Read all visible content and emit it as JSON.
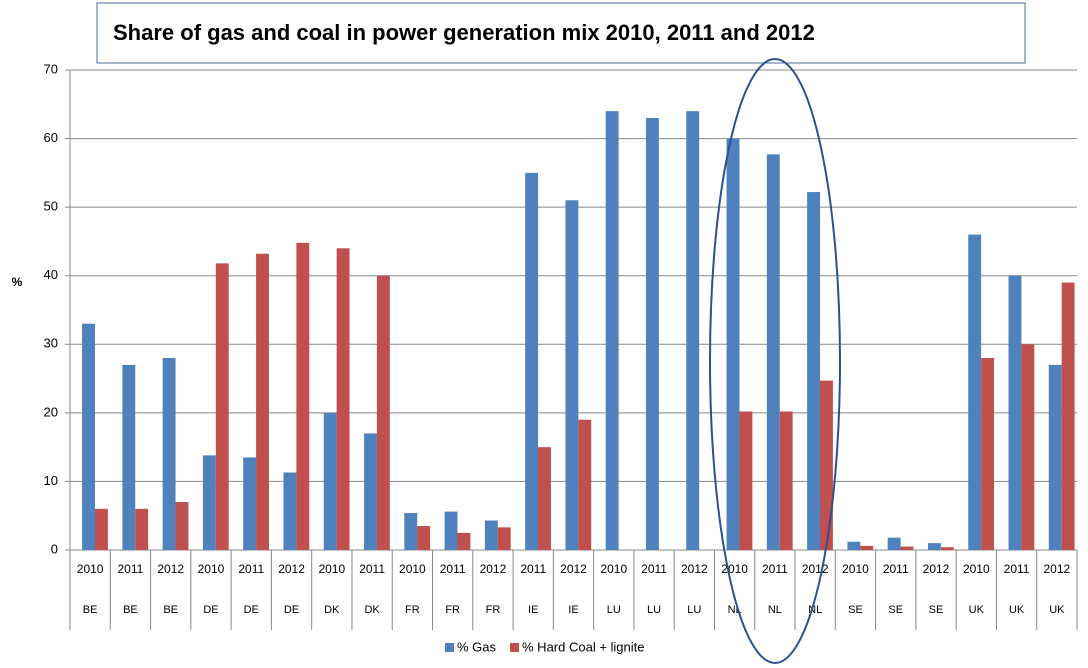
{
  "chart_data": {
    "type": "bar",
    "title": "Share of gas and coal in power generation mix 2010, 2011 and 2012",
    "y_label": "%",
    "categories": [
      "2010",
      "2011",
      "2012",
      "2010",
      "2011",
      "2012",
      "2010",
      "2011",
      "2010",
      "2011",
      "2012",
      "2011",
      "2012",
      "2010",
      "2011",
      "2012",
      "2010",
      "2011",
      "2012",
      "2010",
      "2011",
      "2012",
      "2010",
      "2011",
      "2012"
    ],
    "category_groups": [
      "BE",
      "BE",
      "BE",
      "DE",
      "DE",
      "DE",
      "DK",
      "DK",
      "FR",
      "FR",
      "FR",
      "IE",
      "IE",
      "LU",
      "LU",
      "LU",
      "NL",
      "NL",
      "NL",
      "SE",
      "SE",
      "SE",
      "UK",
      "UK",
      "UK"
    ],
    "series": [
      {
        "name": "% Gas",
        "color": "#4f81bd",
        "values": [
          33,
          27,
          28,
          13.8,
          13.5,
          11.3,
          20,
          17,
          5.4,
          5.6,
          4.3,
          55,
          51,
          64,
          63,
          64,
          60,
          57.7,
          52.2,
          1.2,
          1.8,
          1,
          46,
          40,
          27
        ]
      },
      {
        "name": "% Hard Coal + lignite",
        "color": "#c0504d",
        "values": [
          6,
          6,
          7,
          41.8,
          43.2,
          44.8,
          44,
          40,
          3.5,
          2.5,
          3.3,
          15,
          19,
          null,
          null,
          null,
          20.2,
          20.2,
          24.7,
          0.6,
          0.5,
          0.4,
          28,
          30,
          39
        ]
      }
    ],
    "ylim": [
      0,
      70
    ],
    "yticks": [
      0,
      10,
      20,
      30,
      40,
      50,
      60,
      70
    ],
    "grid": true,
    "legend": "bottom"
  }
}
